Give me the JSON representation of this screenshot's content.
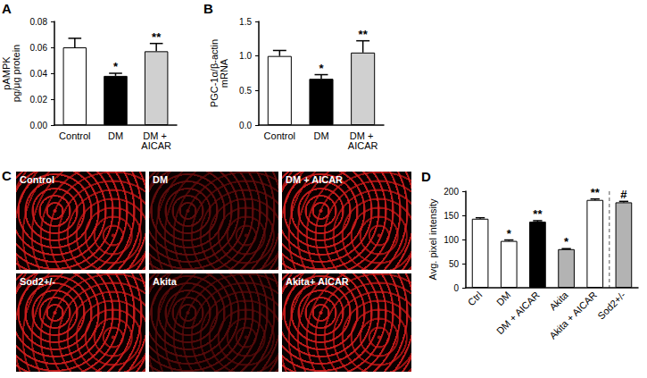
{
  "chart_data": [
    {
      "type": "bar",
      "title": "A",
      "ylabel": "pAMPK\npg/μg protein",
      "categories": [
        "Control",
        "DM",
        "DM + AICAR"
      ],
      "values": [
        0.06,
        0.038,
        0.057
      ],
      "errors": [
        0.007,
        0.002,
        0.006
      ],
      "colors": [
        "#ffffff",
        "#000000",
        "#d0d0d0"
      ],
      "ylim": [
        0,
        0.08
      ],
      "yticks": [
        {
          "value": 0,
          "label": "0.00"
        },
        {
          "value": 0.02,
          "label": "0.02"
        },
        {
          "value": 0.04,
          "label": "0.04"
        },
        {
          "value": 0.06,
          "label": "0.06"
        },
        {
          "value": 0.08,
          "label": "0.08"
        }
      ],
      "annotations": [
        {
          "category": "DM",
          "text": "*"
        },
        {
          "category": "DM + AICAR",
          "text": "**"
        }
      ],
      "grid": false
    },
    {
      "type": "bar",
      "title": "B",
      "ylabel": "PGC-1α/β-actin\nmRNA",
      "categories": [
        "Control",
        "DM",
        "DM + AICAR"
      ],
      "values": [
        1.0,
        0.67,
        1.05
      ],
      "errors": [
        0.08,
        0.06,
        0.17
      ],
      "colors": [
        "#ffffff",
        "#000000",
        "#d0d0d0"
      ],
      "ylim": [
        0,
        1.5
      ],
      "yticks": [
        {
          "value": 0,
          "label": "0.0"
        },
        0.5,
        {
          "value": 1,
          "label": "1.0"
        },
        1.5
      ],
      "annotations": [
        {
          "category": "DM",
          "text": "*"
        },
        {
          "category": "DM + AICAR",
          "text": "**"
        }
      ],
      "grid": false
    },
    {
      "type": "bar",
      "title": "D",
      "ylabel": "Avg. pixel intensity",
      "categories": [
        "Ctrl",
        "DM",
        "DM + AICAR",
        "Akita",
        "Akita + AICAR",
        "Sod2+/-"
      ],
      "values": [
        143,
        97,
        137,
        80,
        182,
        177
      ],
      "errors": [
        2,
        2,
        2,
        1,
        2,
        2
      ],
      "colors": [
        "#ffffff",
        "#ffffff",
        "#000000",
        "#b3b3b3",
        "#ffffff",
        "#b3b3b3"
      ],
      "ylim": [
        0,
        200
      ],
      "yticks": [
        0,
        50,
        100,
        150,
        200
      ],
      "annotations": [
        {
          "category": "DM",
          "text": "*"
        },
        {
          "category": "DM + AICAR",
          "text": "**"
        },
        {
          "category": "Akita",
          "text": "*"
        },
        {
          "category": "Akita + AICAR",
          "text": "**"
        },
        {
          "category": "Sod2+/-",
          "text": "#"
        }
      ],
      "grid": false
    }
  ],
  "image_panel": {
    "title": "C",
    "tiles": [
      "Control",
      "DM",
      "DM + AICAR",
      "Sod2+/-",
      "Akita",
      "Akita+ AICAR"
    ]
  }
}
